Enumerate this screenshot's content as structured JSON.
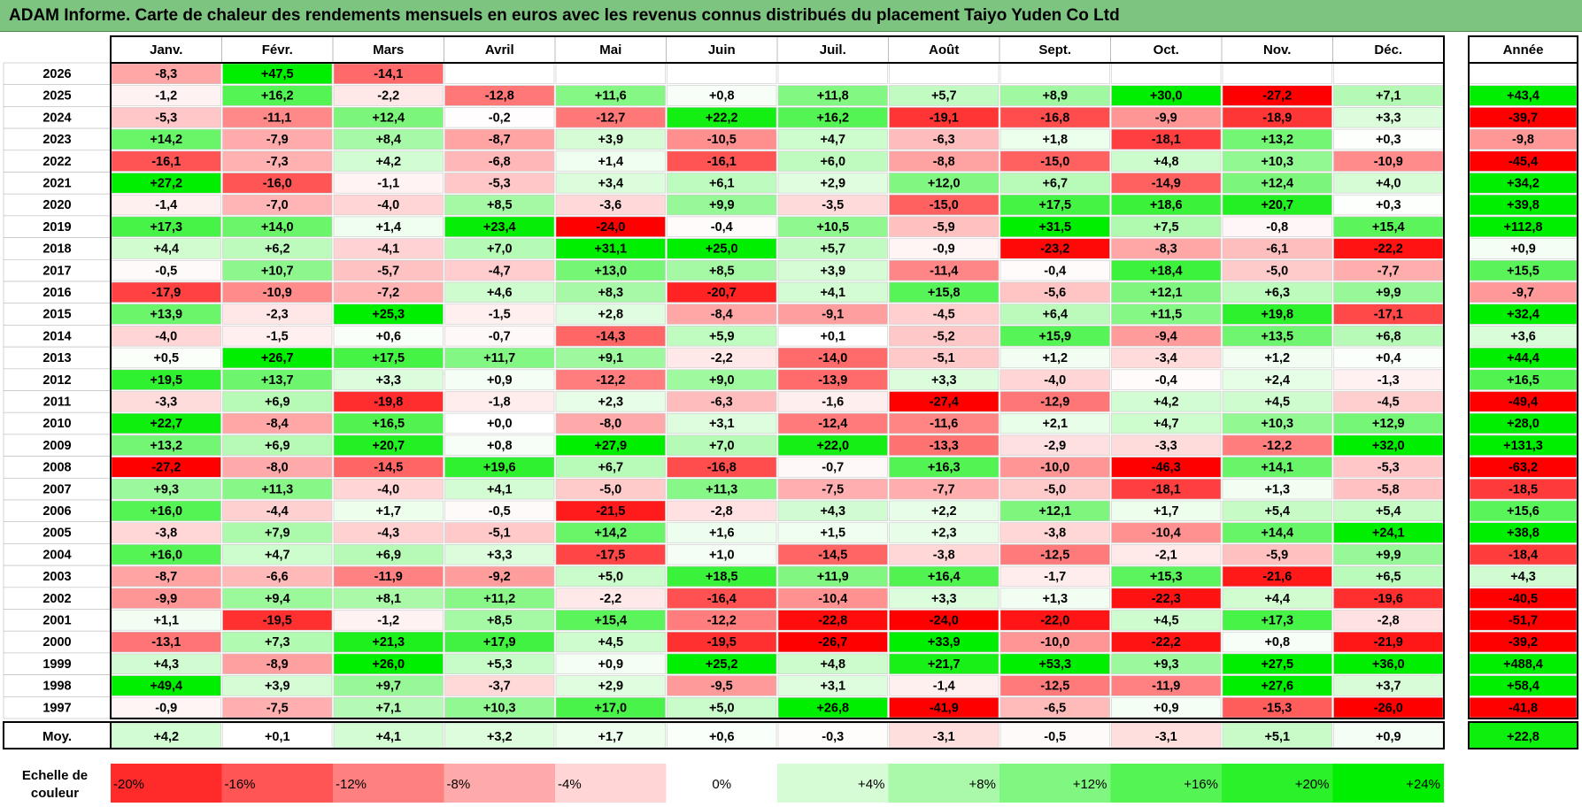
{
  "title": "ADAM Informe. Carte de chaleur des rendements mensuels en euros avec les revenus connus distribués du placement Taiyo Yuden Co Ltd",
  "colors": {
    "title_bg": "#7cc47f",
    "negative_max": "#ff0000",
    "positive_max": "#00ee00",
    "neutral": "#ffffff"
  },
  "chart_data": {
    "type": "heatmap",
    "title": "ADAM Informe. Carte de chaleur des rendements mensuels en euros avec les revenus connus distribués du placement Taiyo Yuden Co Ltd",
    "columns": [
      "Janv.",
      "Févr.",
      "Mars",
      "Avril",
      "Mai",
      "Juin",
      "Juil.",
      "Août",
      "Sept.",
      "Oct.",
      "Nov.",
      "Déc."
    ],
    "year_column_label": "Année",
    "rows": [
      {
        "year": "2026",
        "values": [
          "-8,3",
          "+47,5",
          "-14,1",
          "",
          "",
          "",
          "",
          "",
          "",
          "",
          "",
          ""
        ],
        "annual": ""
      },
      {
        "year": "2025",
        "values": [
          "-1,2",
          "+16,2",
          "-2,2",
          "-12,8",
          "+11,6",
          "+0,8",
          "+11,8",
          "+5,7",
          "+8,9",
          "+30,0",
          "-27,2",
          "+7,1"
        ],
        "annual": "+43,4"
      },
      {
        "year": "2024",
        "values": [
          "-5,3",
          "-11,1",
          "+12,4",
          "-0,2",
          "-12,7",
          "+22,2",
          "+16,2",
          "-19,1",
          "-16,8",
          "-9,9",
          "-18,9",
          "+3,3"
        ],
        "annual": "-39,7"
      },
      {
        "year": "2023",
        "values": [
          "+14,2",
          "-7,9",
          "+8,4",
          "-8,7",
          "+3,9",
          "-10,5",
          "+4,7",
          "-6,3",
          "+1,8",
          "-18,1",
          "+13,2",
          "+0,3"
        ],
        "annual": "-9,8"
      },
      {
        "year": "2022",
        "values": [
          "-16,1",
          "-7,3",
          "+4,2",
          "-6,8",
          "+1,4",
          "-16,1",
          "+6,0",
          "-8,8",
          "-15,0",
          "+4,8",
          "+10,3",
          "-10,9"
        ],
        "annual": "-45,4"
      },
      {
        "year": "2021",
        "values": [
          "+27,2",
          "-16,0",
          "-1,1",
          "-5,3",
          "+3,4",
          "+6,1",
          "+2,9",
          "+12,0",
          "+6,7",
          "-14,9",
          "+12,4",
          "+4,0"
        ],
        "annual": "+34,2"
      },
      {
        "year": "2020",
        "values": [
          "-1,4",
          "-7,0",
          "-4,0",
          "+8,5",
          "-3,6",
          "+9,9",
          "-3,5",
          "-15,0",
          "+17,5",
          "+18,6",
          "+20,7",
          "+0,3"
        ],
        "annual": "+39,8"
      },
      {
        "year": "2019",
        "values": [
          "+17,3",
          "+14,0",
          "+1,4",
          "+23,4",
          "-24,0",
          "-0,4",
          "+10,5",
          "-5,9",
          "+31,5",
          "+7,5",
          "-0,8",
          "+15,4"
        ],
        "annual": "+112,8"
      },
      {
        "year": "2018",
        "values": [
          "+4,4",
          "+6,2",
          "-4,1",
          "+7,0",
          "+31,1",
          "+25,0",
          "+5,7",
          "-0,9",
          "-23,2",
          "-8,3",
          "-6,1",
          "-22,2"
        ],
        "annual": "+0,9"
      },
      {
        "year": "2017",
        "values": [
          "-0,5",
          "+10,7",
          "-5,7",
          "-4,7",
          "+13,0",
          "+8,5",
          "+3,9",
          "-11,4",
          "-0,4",
          "+18,4",
          "-5,0",
          "-7,7"
        ],
        "annual": "+15,5"
      },
      {
        "year": "2016",
        "values": [
          "-17,9",
          "-10,9",
          "-7,2",
          "+4,6",
          "+8,3",
          "-20,7",
          "+4,1",
          "+15,8",
          "-5,6",
          "+12,1",
          "+6,3",
          "+9,9"
        ],
        "annual": "-9,7"
      },
      {
        "year": "2015",
        "values": [
          "+13,9",
          "-2,3",
          "+25,3",
          "-1,5",
          "+2,8",
          "-8,4",
          "-9,1",
          "-4,5",
          "+6,4",
          "+11,5",
          "+19,8",
          "-17,1"
        ],
        "annual": "+32,4"
      },
      {
        "year": "2014",
        "values": [
          "-4,0",
          "-1,5",
          "+0,6",
          "-0,7",
          "-14,3",
          "+5,9",
          "+0,1",
          "-5,2",
          "+15,9",
          "-9,4",
          "+13,5",
          "+6,8"
        ],
        "annual": "+3,6"
      },
      {
        "year": "2013",
        "values": [
          "+0,5",
          "+26,7",
          "+17,5",
          "+11,7",
          "+9,1",
          "-2,2",
          "-14,0",
          "-5,1",
          "+1,2",
          "-3,4",
          "+1,2",
          "+0,4"
        ],
        "annual": "+44,4"
      },
      {
        "year": "2012",
        "values": [
          "+19,5",
          "+13,7",
          "+3,3",
          "+0,9",
          "-12,2",
          "+9,0",
          "-13,9",
          "+3,3",
          "-4,0",
          "-0,4",
          "+2,4",
          "-1,3"
        ],
        "annual": "+16,5"
      },
      {
        "year": "2011",
        "values": [
          "-3,3",
          "+6,9",
          "-19,8",
          "-1,8",
          "+2,3",
          "-6,3",
          "-1,6",
          "-27,4",
          "-12,9",
          "+4,2",
          "+4,5",
          "-4,5"
        ],
        "annual": "-49,4"
      },
      {
        "year": "2010",
        "values": [
          "+22,7",
          "-8,4",
          "+16,5",
          "+0,0",
          "-8,0",
          "+3,1",
          "-12,4",
          "-11,6",
          "+2,1",
          "+4,7",
          "+10,3",
          "+12,9"
        ],
        "annual": "+28,0"
      },
      {
        "year": "2009",
        "values": [
          "+13,2",
          "+6,9",
          "+20,7",
          "+0,8",
          "+27,9",
          "+7,0",
          "+22,0",
          "-13,3",
          "-2,9",
          "-3,3",
          "-12,2",
          "+32,0"
        ],
        "annual": "+131,3"
      },
      {
        "year": "2008",
        "values": [
          "-27,2",
          "-8,0",
          "-14,5",
          "+19,6",
          "+6,7",
          "-16,8",
          "-0,7",
          "+16,3",
          "-10,0",
          "-46,3",
          "+14,1",
          "-5,3"
        ],
        "annual": "-63,2"
      },
      {
        "year": "2007",
        "values": [
          "+9,3",
          "+11,3",
          "-4,0",
          "+4,1",
          "-5,0",
          "+11,3",
          "-7,5",
          "-7,7",
          "-5,0",
          "-18,1",
          "+1,3",
          "-5,8"
        ],
        "annual": "-18,5"
      },
      {
        "year": "2006",
        "values": [
          "+16,0",
          "-4,4",
          "+1,7",
          "-0,5",
          "-21,5",
          "-2,8",
          "+4,3",
          "+2,2",
          "+12,1",
          "+1,7",
          "+5,4",
          "+5,4"
        ],
        "annual": "+15,6"
      },
      {
        "year": "2005",
        "values": [
          "-3,8",
          "+7,9",
          "-4,3",
          "-5,1",
          "+14,2",
          "+1,6",
          "+1,5",
          "+2,3",
          "-3,8",
          "-10,4",
          "+14,4",
          "+24,1"
        ],
        "annual": "+38,8"
      },
      {
        "year": "2004",
        "values": [
          "+16,0",
          "+4,7",
          "+6,9",
          "+3,3",
          "-17,5",
          "+1,0",
          "-14,5",
          "-3,8",
          "-12,5",
          "-2,1",
          "-5,9",
          "+9,9"
        ],
        "annual": "-18,4"
      },
      {
        "year": "2003",
        "values": [
          "-8,7",
          "-6,6",
          "-11,9",
          "-9,2",
          "+5,0",
          "+18,5",
          "+11,9",
          "+16,4",
          "-1,7",
          "+15,3",
          "-21,6",
          "+6,5"
        ],
        "annual": "+4,3"
      },
      {
        "year": "2002",
        "values": [
          "-9,9",
          "+9,4",
          "+8,1",
          "+11,2",
          "-2,2",
          "-16,4",
          "-10,4",
          "+3,3",
          "+1,3",
          "-22,3",
          "+4,4",
          "-19,6"
        ],
        "annual": "-40,5"
      },
      {
        "year": "2001",
        "values": [
          "+1,1",
          "-19,5",
          "-1,2",
          "+8,5",
          "+15,4",
          "-12,2",
          "-22,8",
          "-24,0",
          "-22,0",
          "+4,5",
          "+17,3",
          "-2,8"
        ],
        "annual": "-51,7"
      },
      {
        "year": "2000",
        "values": [
          "-13,1",
          "+7,3",
          "+21,3",
          "+17,9",
          "+4,5",
          "-19,5",
          "-26,7",
          "+33,9",
          "-10,0",
          "-22,2",
          "+0,8",
          "-21,9"
        ],
        "annual": "-39,2"
      },
      {
        "year": "1999",
        "values": [
          "+4,3",
          "-8,9",
          "+26,0",
          "+5,3",
          "+0,9",
          "+25,2",
          "+4,8",
          "+21,7",
          "+53,3",
          "+9,3",
          "+27,5",
          "+36,0"
        ],
        "annual": "+488,4"
      },
      {
        "year": "1998",
        "values": [
          "+49,4",
          "+3,9",
          "+9,7",
          "-3,7",
          "+2,9",
          "-9,5",
          "+3,1",
          "-1,4",
          "-12,5",
          "-11,9",
          "+27,6",
          "+3,7"
        ],
        "annual": "+58,4"
      },
      {
        "year": "1997",
        "values": [
          "-0,9",
          "-7,5",
          "+7,1",
          "+10,3",
          "+17,0",
          "+5,0",
          "+26,8",
          "-41,9",
          "-6,5",
          "+0,9",
          "-15,3",
          "-26,0"
        ],
        "annual": "-41,8"
      }
    ],
    "average": {
      "label": "Moy.",
      "values": [
        "+4,2",
        "+0,1",
        "+4,1",
        "+3,2",
        "+1,7",
        "+0,6",
        "-0,3",
        "-3,1",
        "-0,5",
        "-3,1",
        "+5,1",
        "+0,9"
      ],
      "annual": "+22,8"
    },
    "scale": {
      "label_line1": "Echelle de",
      "label_line2": "couleur",
      "steps": [
        {
          "label": "-20%",
          "value": -20
        },
        {
          "label": "-16%",
          "value": -16
        },
        {
          "label": "-12%",
          "value": -12
        },
        {
          "label": "-8%",
          "value": -8
        },
        {
          "label": "-4%",
          "value": -4
        },
        {
          "label": "0%",
          "value": 0
        },
        {
          "label": "+4%",
          "value": 4
        },
        {
          "label": "+8%",
          "value": 8
        },
        {
          "label": "+12%",
          "value": 12
        },
        {
          "label": "+16%",
          "value": 16
        },
        {
          "label": "+20%",
          "value": 20
        },
        {
          "label": "+24%",
          "value": 24
        }
      ]
    },
    "color_scale_range": [
      -24,
      24
    ]
  }
}
